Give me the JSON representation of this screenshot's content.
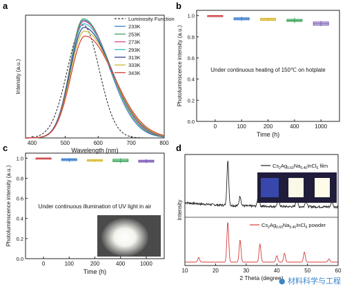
{
  "watermark": "● 材料科学与工程",
  "panels": {
    "a": {
      "label": "a"
    },
    "b": {
      "label": "b",
      "annotation": "Under continuous heating of 150℃ on hotplate"
    },
    "c": {
      "label": "c",
      "annotation": "Under continuous illumination of UV light in air"
    },
    "d": {
      "label": "d"
    }
  },
  "colors": {
    "233K": "#3a7fcf",
    "253K": "#3aa35a",
    "273K": "#d24a8a",
    "293K": "#35b9c9",
    "313K": "#2c3f8f",
    "333K": "#c9b833",
    "343K": "#d63c32",
    "lum": "#333333",
    "b_box": "#c83232",
    "d_film": "#222222",
    "d_powder": "#d43b3b"
  },
  "chart_data": [
    {
      "panel": "a",
      "type": "line",
      "xlabel": "Wavelength (nm)",
      "ylabel": "Intensity (a.u.)",
      "xlim": [
        380,
        800
      ],
      "xticks": [
        400,
        500,
        600,
        700,
        800
      ],
      "legend_position": "top-right",
      "series": [
        {
          "name": "Luminosity Function",
          "style": "dashed",
          "peak_x": 555,
          "peak_y": 0.92,
          "sigma_l": 48,
          "sigma_r": 48
        },
        {
          "name": "233K",
          "peak_x": 555,
          "peak_y": 0.96,
          "sigma_l": 40,
          "sigma_r": 78
        },
        {
          "name": "253K",
          "peak_x": 555,
          "peak_y": 0.97,
          "sigma_l": 40,
          "sigma_r": 80
        },
        {
          "name": "273K",
          "peak_x": 556,
          "peak_y": 0.95,
          "sigma_l": 41,
          "sigma_r": 82
        },
        {
          "name": "293K",
          "peak_x": 556,
          "peak_y": 0.93,
          "sigma_l": 41,
          "sigma_r": 84
        },
        {
          "name": "313K",
          "peak_x": 557,
          "peak_y": 0.9,
          "sigma_l": 42,
          "sigma_r": 85
        },
        {
          "name": "333K",
          "peak_x": 558,
          "peak_y": 0.87,
          "sigma_l": 42,
          "sigma_r": 86
        },
        {
          "name": "343K",
          "peak_x": 560,
          "peak_y": 0.83,
          "sigma_l": 43,
          "sigma_r": 88
        }
      ]
    },
    {
      "panel": "b",
      "type": "box",
      "xlabel": "Time (h)",
      "ylabel": "Photoluminscence intensity (a.u.)",
      "ylim": [
        0.0,
        1.05
      ],
      "yticks": [
        0.0,
        0.2,
        0.4,
        0.6,
        0.8,
        1.0
      ],
      "categories": [
        "0",
        "100",
        "200",
        "400",
        "1000"
      ],
      "series": [
        {
          "low": 1.0,
          "q1": 1.0,
          "median": 1.0,
          "q3": 1.0,
          "high": 1.0
        },
        {
          "low": 0.95,
          "q1": 0.96,
          "median": 0.97,
          "q3": 0.98,
          "high": 0.99
        },
        {
          "low": 0.95,
          "q1": 0.955,
          "median": 0.965,
          "q3": 0.975,
          "high": 0.98
        },
        {
          "low": 0.93,
          "q1": 0.945,
          "median": 0.955,
          "q3": 0.965,
          "high": 0.98
        },
        {
          "low": 0.9,
          "q1": 0.91,
          "median": 0.925,
          "q3": 0.94,
          "high": 0.95
        }
      ]
    },
    {
      "panel": "c",
      "type": "box",
      "xlabel": "Time (h)",
      "ylabel": "Photoluminscence intensity (a.u.)",
      "ylim": [
        0.0,
        1.05
      ],
      "yticks": [
        0.0,
        0.2,
        0.4,
        0.6,
        0.8,
        1.0
      ],
      "categories": [
        "0",
        "100",
        "200",
        "400",
        "1000"
      ],
      "series": [
        {
          "low": 1.0,
          "q1": 1.0,
          "median": 1.0,
          "q3": 1.0,
          "high": 1.0
        },
        {
          "low": 0.96,
          "q1": 0.975,
          "median": 0.985,
          "q3": 0.995,
          "high": 1.0
        },
        {
          "low": 0.96,
          "q1": 0.97,
          "median": 0.975,
          "q3": 0.985,
          "high": 0.99
        },
        {
          "low": 0.95,
          "q1": 0.965,
          "median": 0.975,
          "q3": 0.99,
          "high": 1.0
        },
        {
          "low": 0.95,
          "q1": 0.96,
          "median": 0.97,
          "q3": 0.98,
          "high": 0.99
        }
      ]
    },
    {
      "panel": "d",
      "type": "line",
      "xlabel": "2 Theta (degree)",
      "ylabel": "Intensity",
      "xlim": [
        10,
        60
      ],
      "xticks": [
        10,
        20,
        30,
        40,
        50,
        60
      ],
      "series": [
        {
          "name": "Cs2Ag0.60Na0.40InCl6 film",
          "peaks": [
            [
              24.0,
              1.0
            ],
            [
              28.0,
              0.22
            ],
            [
              34.0,
              0.28
            ],
            [
              40.5,
              0.22
            ],
            [
              46.5,
              0.18
            ],
            [
              49.5,
              0.14
            ],
            [
              58.0,
              0.12
            ]
          ]
        },
        {
          "name": "Cs2Ag0.60Na0.40InCl6 powder",
          "peaks": [
            [
              14.5,
              0.12
            ],
            [
              24.0,
              1.0
            ],
            [
              28.0,
              0.55
            ],
            [
              34.5,
              0.45
            ],
            [
              40.0,
              0.16
            ],
            [
              42.5,
              0.22
            ],
            [
              49.0,
              0.25
            ],
            [
              57.0,
              0.08
            ]
          ]
        }
      ]
    }
  ]
}
